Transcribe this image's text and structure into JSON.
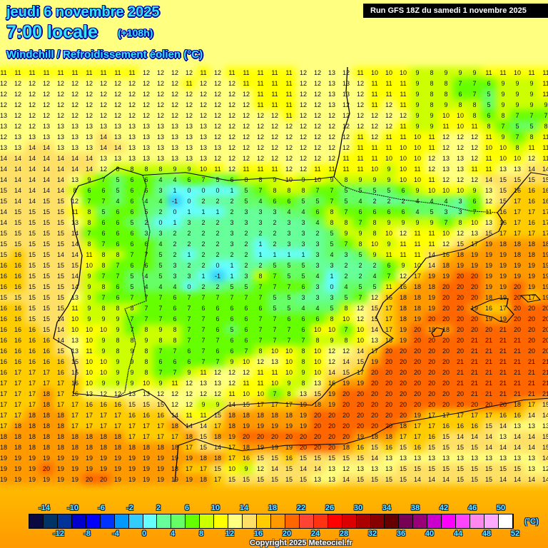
{
  "header": {
    "date": "jeudi 6 novembre 2025",
    "time": "7:00 locale",
    "lead": "(+108h)",
    "parameter": "Windchill / Refroidissement éolien (°C)",
    "run": "Run GFS 18Z du samedi 1 novembre 2025"
  },
  "legend": {
    "unit": "(°C)",
    "labels": [
      -14,
      -12,
      -10,
      -8,
      -6,
      -4,
      -2,
      0,
      2,
      4,
      6,
      8,
      10,
      12,
      14,
      16,
      18,
      20,
      22,
      24,
      26,
      28,
      30,
      32,
      34,
      36,
      38,
      40,
      42,
      44,
      46,
      48,
      50,
      52
    ],
    "colors": [
      "#0a0a40",
      "#003366",
      "#003399",
      "#0000cc",
      "#0000ff",
      "#0033ff",
      "#0099ff",
      "#33ccff",
      "#66ffff",
      "#66ff99",
      "#66ff66",
      "#66ff00",
      "#ccff00",
      "#ffff00",
      "#ffff80",
      "#ffe066",
      "#ffcc00",
      "#ff9900",
      "#ff6600",
      "#ff4433",
      "#ff3311",
      "#ff0000",
      "#dd0000",
      "#aa0000",
      "#880000",
      "#660000",
      "#770055",
      "#990077",
      "#cc00cc",
      "#ff00ff",
      "#ff44ff",
      "#ff88ee",
      "#ffaaff",
      "#ffffff"
    ]
  },
  "copyright": "Copyright 2025 Meteociel.fr",
  "grid": [
    [
      11,
      11,
      11,
      11,
      11,
      11,
      11,
      11,
      11,
      11,
      12,
      12,
      12,
      12,
      11,
      12,
      11,
      11,
      11,
      11,
      11,
      12,
      12,
      13,
      12,
      11,
      10,
      10,
      10,
      9,
      8,
      9,
      9,
      9,
      11,
      11,
      10,
      11,
      11
    ],
    [
      12,
      12,
      12,
      12,
      12,
      12,
      12,
      12,
      12,
      12,
      12,
      12,
      12,
      11,
      12,
      12,
      12,
      11,
      11,
      11,
      11,
      12,
      12,
      13,
      13,
      12,
      11,
      11,
      11,
      9,
      8,
      8,
      7,
      7,
      6,
      9,
      9,
      9,
      11
    ],
    [
      12,
      12,
      12,
      12,
      12,
      12,
      12,
      12,
      12,
      12,
      12,
      12,
      12,
      12,
      12,
      12,
      12,
      12,
      11,
      11,
      11,
      12,
      12,
      13,
      13,
      12,
      11,
      11,
      11,
      9,
      8,
      8,
      6,
      7,
      5,
      9,
      9,
      9,
      11
    ],
    [
      12,
      12,
      12,
      12,
      12,
      12,
      12,
      12,
      12,
      12,
      12,
      12,
      12,
      12,
      12,
      12,
      12,
      12,
      11,
      11,
      11,
      12,
      12,
      13,
      12,
      12,
      11,
      12,
      11,
      9,
      8,
      9,
      8,
      8,
      5,
      9,
      9,
      9,
      9
    ],
    [
      13,
      12,
      12,
      12,
      12,
      12,
      12,
      12,
      12,
      12,
      12,
      12,
      12,
      12,
      12,
      12,
      12,
      12,
      12,
      12,
      11,
      12,
      12,
      12,
      12,
      12,
      12,
      12,
      12,
      9,
      9,
      10,
      10,
      8,
      6,
      8,
      7,
      7,
      7
    ],
    [
      13,
      12,
      12,
      13,
      13,
      13,
      13,
      13,
      13,
      13,
      13,
      13,
      13,
      13,
      13,
      12,
      12,
      12,
      12,
      12,
      12,
      12,
      12,
      12,
      12,
      12,
      12,
      12,
      11,
      9,
      9,
      11,
      10,
      11,
      8,
      7,
      5,
      5,
      8
    ],
    [
      12,
      13,
      13,
      13,
      13,
      13,
      13,
      14,
      13,
      13,
      13,
      13,
      13,
      13,
      13,
      12,
      12,
      12,
      12,
      12,
      12,
      12,
      12,
      12,
      12,
      11,
      12,
      11,
      11,
      10,
      11,
      12,
      12,
      12,
      11,
      9,
      7,
      8,
      11
    ],
    [
      13,
      13,
      14,
      14,
      13,
      13,
      13,
      14,
      14,
      13,
      13,
      13,
      13,
      13,
      13,
      13,
      12,
      12,
      12,
      12,
      12,
      12,
      12,
      12,
      12,
      11,
      11,
      11,
      10,
      10,
      11,
      12,
      12,
      12,
      10,
      10,
      8,
      11,
      11
    ],
    [
      14,
      14,
      14,
      14,
      14,
      14,
      14,
      13,
      13,
      13,
      13,
      13,
      13,
      13,
      13,
      12,
      12,
      12,
      12,
      12,
      12,
      12,
      12,
      12,
      11,
      11,
      11,
      10,
      10,
      10,
      12,
      13,
      13,
      12,
      11,
      10,
      10,
      12,
      11
    ],
    [
      14,
      14,
      14,
      14,
      14,
      14,
      14,
      12,
      8,
      8,
      8,
      8,
      9,
      9,
      10,
      11,
      12,
      11,
      11,
      11,
      12,
      12,
      11,
      11,
      11,
      11,
      10,
      9,
      10,
      11,
      12,
      13,
      13,
      11,
      11,
      13,
      13,
      14,
      14
    ],
    [
      14,
      14,
      14,
      14,
      14,
      13,
      9,
      7,
      5,
      6,
      6,
      4,
      4,
      6,
      7,
      5,
      6,
      8,
      8,
      9,
      10,
      9,
      10,
      9,
      8,
      9,
      9,
      9,
      10,
      10,
      11,
      12,
      12,
      12,
      14,
      15,
      15,
      15,
      15
    ],
    [
      15,
      14,
      14,
      14,
      14,
      8,
      6,
      6,
      5,
      6,
      6,
      3,
      1,
      0,
      0,
      0,
      1,
      5,
      7,
      8,
      8,
      8,
      7,
      7,
      5,
      5,
      5,
      5,
      6,
      9,
      10,
      10,
      10,
      9,
      13,
      15,
      16,
      16,
      16
    ],
    [
      15,
      14,
      14,
      15,
      15,
      12,
      7,
      7,
      4,
      6,
      4,
      4,
      -1,
      0,
      2,
      2,
      2,
      5,
      4,
      6,
      6,
      5,
      5,
      7,
      5,
      4,
      2,
      2,
      2,
      4,
      4,
      4,
      3,
      6,
      12,
      15,
      17,
      16,
      16
    ],
    [
      14,
      15,
      15,
      15,
      15,
      11,
      8,
      5,
      6,
      6,
      5,
      2,
      0,
      1,
      1,
      1,
      2,
      3,
      3,
      3,
      4,
      4,
      6,
      8,
      7,
      6,
      6,
      6,
      6,
      4,
      5,
      3,
      3,
      7,
      11,
      16,
      17,
      17,
      17
    ],
    [
      14,
      15,
      15,
      15,
      15,
      13,
      8,
      6,
      6,
      5,
      2,
      0,
      1,
      3,
      2,
      2,
      3,
      3,
      3,
      2,
      3,
      3,
      4,
      8,
      8,
      7,
      8,
      9,
      9,
      9,
      9,
      7,
      8,
      10,
      13,
      16,
      17,
      16,
      17
    ],
    [
      15,
      15,
      15,
      15,
      15,
      14,
      7,
      6,
      6,
      6,
      3,
      3,
      2,
      2,
      2,
      2,
      3,
      2,
      2,
      2,
      3,
      3,
      2,
      5,
      9,
      9,
      8,
      10,
      12,
      11,
      11,
      10,
      12,
      13,
      15,
      17,
      17,
      17,
      17
    ],
    [
      15,
      15,
      15,
      15,
      15,
      14,
      8,
      7,
      6,
      6,
      6,
      4,
      2,
      2,
      2,
      2,
      3,
      2,
      1,
      2,
      3,
      3,
      3,
      5,
      7,
      8,
      10,
      9,
      11,
      11,
      11,
      12,
      15,
      17,
      19,
      18,
      18,
      18,
      18
    ],
    [
      15,
      16,
      15,
      15,
      14,
      14,
      11,
      8,
      8,
      7,
      7,
      5,
      2,
      1,
      2,
      2,
      2,
      2,
      1,
      1,
      1,
      1,
      3,
      4,
      3,
      5,
      9,
      11,
      11,
      11,
      14,
      16,
      18,
      19,
      19,
      19,
      18,
      18,
      19
    ],
    [
      16,
      16,
      15,
      15,
      15,
      15,
      10,
      8,
      7,
      6,
      6,
      5,
      3,
      2,
      2,
      0,
      1,
      2,
      2,
      5,
      5,
      5,
      3,
      3,
      2,
      2,
      2,
      6,
      9,
      10,
      14,
      18,
      19,
      19,
      19,
      19,
      19,
      19,
      19
    ],
    [
      16,
      16,
      15,
      15,
      15,
      14,
      9,
      7,
      7,
      5,
      4,
      5,
      3,
      3,
      1,
      -1,
      1,
      3,
      8,
      7,
      5,
      5,
      4,
      1,
      2,
      2,
      4,
      7,
      12,
      17,
      19,
      19,
      20,
      20,
      19,
      19,
      19,
      19,
      19
    ],
    [
      16,
      16,
      15,
      15,
      15,
      14,
      9,
      8,
      6,
      5,
      4,
      4,
      4,
      0,
      2,
      2,
      5,
      5,
      7,
      7,
      7,
      6,
      3,
      0,
      4,
      5,
      5,
      11,
      16,
      18,
      18,
      20,
      20,
      20,
      19,
      19,
      20,
      19,
      19
    ],
    [
      15,
      15,
      15,
      15,
      15,
      13,
      9,
      7,
      6,
      7,
      7,
      7,
      6,
      7,
      7,
      7,
      7,
      7,
      7,
      5,
      5,
      3,
      3,
      3,
      5,
      7,
      12,
      16,
      18,
      18,
      19,
      20,
      20,
      20,
      18,
      19,
      20,
      17,
      19
    ],
    [
      16,
      16,
      15,
      15,
      15,
      11,
      9,
      8,
      8,
      8,
      7,
      7,
      6,
      7,
      6,
      6,
      6,
      6,
      6,
      5,
      5,
      4,
      4,
      5,
      8,
      12,
      15,
      17,
      18,
      18,
      19,
      20,
      20,
      19,
      16,
      17,
      20,
      20,
      20
    ],
    [
      16,
      16,
      15,
      15,
      14,
      10,
      9,
      9,
      9,
      7,
      7,
      7,
      6,
      7,
      7,
      6,
      6,
      6,
      7,
      7,
      6,
      6,
      6,
      8,
      10,
      12,
      15,
      17,
      18,
      19,
      20,
      20,
      20,
      20,
      19,
      19,
      20,
      20,
      20
    ],
    [
      16,
      16,
      16,
      15,
      14,
      10,
      10,
      10,
      9,
      7,
      8,
      9,
      8,
      7,
      7,
      6,
      5,
      6,
      7,
      7,
      7,
      6,
      10,
      10,
      7,
      10,
      14,
      17,
      19,
      20,
      18,
      18,
      20,
      20,
      20,
      21,
      20,
      20,
      20
    ],
    [
      16,
      16,
      16,
      16,
      14,
      13,
      10,
      9,
      8,
      8,
      9,
      8,
      8,
      7,
      7,
      7,
      6,
      6,
      7,
      7,
      7,
      7,
      8,
      9,
      8,
      10,
      13,
      16,
      19,
      20,
      20,
      20,
      20,
      21,
      21,
      21,
      21,
      20,
      20
    ],
    [
      16,
      16,
      16,
      16,
      15,
      13,
      11,
      9,
      8,
      9,
      8,
      7,
      7,
      6,
      7,
      6,
      6,
      7,
      8,
      10,
      10,
      8,
      10,
      12,
      12,
      14,
      17,
      20,
      20,
      20,
      20,
      20,
      20,
      21,
      21,
      21,
      21,
      20,
      20
    ],
    [
      16,
      16,
      16,
      16,
      16,
      15,
      10,
      10,
      9,
      9,
      8,
      6,
      6,
      6,
      7,
      7,
      9,
      10,
      12,
      13,
      10,
      8,
      10,
      12,
      14,
      15,
      19,
      20,
      20,
      20,
      20,
      20,
      21,
      21,
      21,
      21,
      21,
      21,
      21
    ],
    [
      16,
      17,
      17,
      17,
      16,
      15,
      10,
      10,
      9,
      9,
      8,
      7,
      7,
      9,
      11,
      12,
      12,
      12,
      11,
      11,
      10,
      9,
      10,
      14,
      15,
      17,
      20,
      20,
      20,
      20,
      20,
      20,
      21,
      21,
      21,
      21,
      21,
      21,
      21
    ],
    [
      17,
      17,
      17,
      17,
      17,
      16,
      10,
      9,
      9,
      9,
      10,
      9,
      11,
      12,
      13,
      13,
      12,
      11,
      11,
      10,
      9,
      8,
      13,
      16,
      19,
      19,
      20,
      20,
      20,
      20,
      20,
      20,
      21,
      21,
      21,
      21,
      21,
      21,
      21
    ],
    [
      17,
      17,
      17,
      18,
      17,
      16,
      13,
      12,
      12,
      13,
      13,
      12,
      12,
      12,
      12,
      12,
      11,
      10,
      10,
      7,
      8,
      13,
      15,
      19,
      20,
      20,
      20,
      20,
      20,
      20,
      20,
      20,
      20,
      21,
      21,
      21,
      21,
      21,
      21
    ],
    [
      17,
      17,
      17,
      18,
      17,
      17,
      16,
      16,
      16,
      15,
      15,
      15,
      12,
      12,
      9,
      9,
      14,
      15,
      17,
      17,
      17,
      19,
      18,
      19,
      20,
      20,
      20,
      20,
      20,
      20,
      20,
      20,
      20,
      20,
      20,
      20,
      18,
      17,
      15
    ],
    [
      17,
      17,
      18,
      18,
      18,
      17,
      17,
      17,
      17,
      16,
      16,
      16,
      14,
      11,
      11,
      15,
      18,
      18,
      18,
      18,
      18,
      19,
      20,
      20,
      20,
      20,
      20,
      20,
      20,
      19,
      17,
      17,
      17,
      17,
      17,
      16,
      16,
      14,
      14
    ],
    [
      17,
      18,
      18,
      18,
      18,
      17,
      17,
      17,
      17,
      17,
      17,
      17,
      18,
      14,
      14,
      17,
      18,
      19,
      19,
      19,
      19,
      19,
      20,
      20,
      20,
      20,
      20,
      20,
      18,
      17,
      17,
      16,
      16,
      16,
      15,
      14,
      13,
      13,
      13
    ],
    [
      18,
      18,
      18,
      18,
      18,
      18,
      18,
      18,
      18,
      17,
      17,
      17,
      17,
      18,
      15,
      18,
      19,
      20,
      20,
      20,
      20,
      20,
      20,
      20,
      20,
      19,
      18,
      18,
      17,
      17,
      16,
      15,
      14,
      14,
      14,
      13,
      14,
      14,
      15
    ],
    [
      18,
      18,
      18,
      18,
      18,
      18,
      18,
      18,
      18,
      18,
      18,
      18,
      18,
      17,
      15,
      14,
      17,
      18,
      19,
      19,
      19,
      20,
      20,
      20,
      18,
      16,
      15,
      16,
      15,
      16,
      15,
      15,
      15,
      15,
      14,
      14,
      14,
      14,
      15
    ],
    [
      19,
      19,
      19,
      19,
      19,
      19,
      19,
      19,
      19,
      19,
      19,
      19,
      19,
      19,
      18,
      18,
      17,
      16,
      15,
      15,
      16,
      15,
      15,
      15,
      15,
      15,
      14,
      13,
      13,
      13,
      13,
      13,
      13,
      13,
      13,
      13,
      13,
      13,
      14
    ],
    [
      19,
      19,
      19,
      20,
      19,
      19,
      19,
      19,
      19,
      19,
      19,
      19,
      18,
      17,
      17,
      15,
      10,
      9,
      12,
      14,
      15,
      14,
      14,
      13,
      12,
      13,
      13,
      13,
      15,
      15,
      15,
      15,
      15,
      15,
      15,
      15,
      15,
      13,
      12
    ],
    [
      19,
      19,
      19,
      19,
      19,
      19,
      20,
      20,
      19,
      19,
      19,
      19,
      19,
      19,
      18,
      17,
      15,
      15,
      15,
      15,
      15,
      15,
      13,
      13,
      14,
      15,
      15,
      15,
      15,
      14,
      14,
      14,
      15,
      15,
      15,
      14,
      14,
      14,
      14
    ]
  ]
}
